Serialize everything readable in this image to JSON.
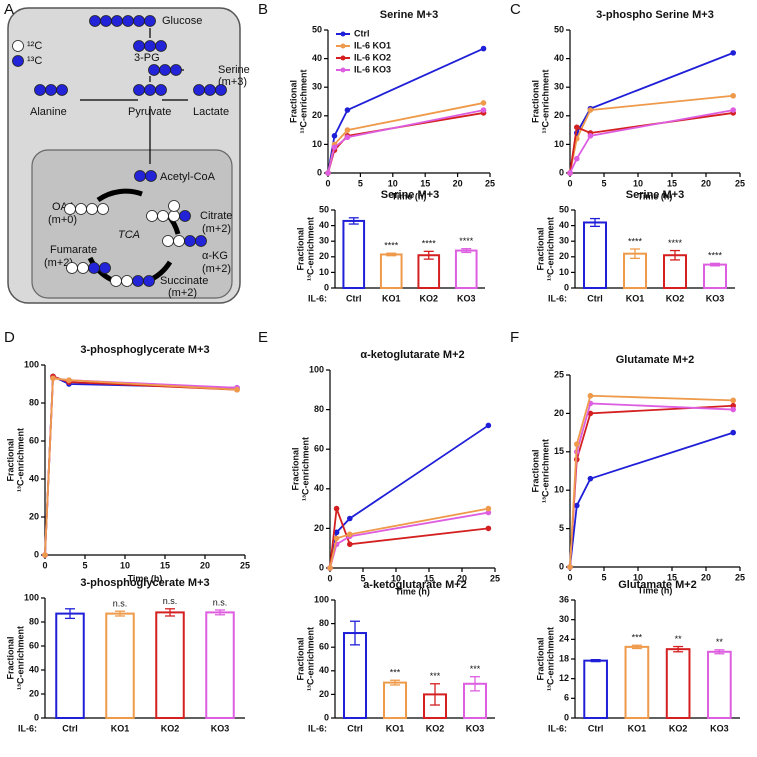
{
  "panels": [
    "A",
    "B",
    "C",
    "D",
    "E",
    "F"
  ],
  "diagram": {
    "glucose": "Glucose",
    "pg": "3-PG",
    "serine": "Serine",
    "serine_m": "(m+3)",
    "alanine": "Alanine",
    "pyruvate": "Pyruvate",
    "lactate": "Lactate",
    "acetyl": "Acetyl-CoA",
    "oaa": "OAA",
    "oaa_m": "(m+0)",
    "citrate": "Citrate",
    "citrate_m": "(m+2)",
    "akg": "α-KG",
    "akg_m": "(m+2)",
    "succinate": "Succinate",
    "succinate_m": "(m+2)",
    "fumarate": "Fumarate",
    "fumarate_m": "(m+2)",
    "tca": "TCA",
    "legend_12c": "¹²C",
    "legend_13c": "¹³C"
  },
  "chart_data": [
    {
      "type": "line",
      "title": "Serine M+3",
      "xlabel": "Time (h)",
      "ylabel": [
        "Fractional",
        "¹³C-enrichment"
      ],
      "legend": "top-left",
      "x": [
        0,
        1,
        3,
        24
      ],
      "xlim": [
        0,
        25
      ],
      "xticks": [
        0,
        5,
        10,
        15,
        20,
        25
      ],
      "ylim": [
        0,
        50
      ],
      "yticks": [
        0,
        10,
        20,
        30,
        40,
        50
      ],
      "series": [
        {
          "name": "Ctrl",
          "color": "#1f1fd8",
          "values": [
            0,
            13,
            22,
            43.5
          ]
        },
        {
          "name": "IL-6 KO1",
          "color": "#ee9a4a",
          "values": [
            0,
            10,
            15,
            24.5
          ]
        },
        {
          "name": "IL-6 KO2",
          "color": "#d42020",
          "values": [
            0,
            8,
            13,
            21
          ]
        },
        {
          "name": "IL-6 KO3",
          "color": "#dd5ee0",
          "values": [
            0,
            9,
            12.5,
            22
          ]
        }
      ]
    },
    {
      "type": "bar",
      "title": "Serine M+3",
      "ylabel": [
        "Fractional",
        "¹³C-enrichment"
      ],
      "xprefix": "IL-6:",
      "categories": [
        "Ctrl",
        "KO1",
        "KO2",
        "KO3"
      ],
      "values": [
        43,
        21.5,
        21,
        24
      ],
      "errors": [
        2,
        0.8,
        2.5,
        1.2
      ],
      "colors": [
        "#1f1fd8",
        "#ee9a4a",
        "#d42020",
        "#dd5ee0"
      ],
      "annotations": [
        null,
        "****",
        "****",
        "****"
      ],
      "ylim": [
        0,
        50
      ],
      "yticks": [
        0,
        10,
        20,
        30,
        40,
        50
      ]
    },
    {
      "type": "line",
      "title": "3-phospho Serine M+3",
      "xlabel": "Time (h)",
      "ylabel": [
        "Fractional",
        "¹³C-enrichment"
      ],
      "x": [
        0,
        1,
        3,
        24
      ],
      "xlim": [
        0,
        25
      ],
      "xticks": [
        0,
        5,
        10,
        15,
        20,
        25
      ],
      "ylim": [
        0,
        50
      ],
      "yticks": [
        0,
        10,
        20,
        30,
        40,
        50
      ],
      "series": [
        {
          "color": "#1f1fd8",
          "values": [
            0,
            14,
            22.5,
            42
          ]
        },
        {
          "color": "#ee9a4a",
          "values": [
            0,
            12,
            22,
            27
          ]
        },
        {
          "color": "#d42020",
          "values": [
            0,
            16,
            14,
            21
          ]
        },
        {
          "color": "#dd5ee0",
          "values": [
            0,
            5,
            13,
            22
          ]
        }
      ]
    },
    {
      "type": "bar",
      "title": "Serine M+3",
      "ylabel": [
        "Fractional",
        "¹³C-enrichment"
      ],
      "xprefix": "IL-6:",
      "categories": [
        "Ctrl",
        "KO1",
        "KO2",
        "KO3"
      ],
      "values": [
        42,
        22,
        21,
        15
      ],
      "errors": [
        2.5,
        3,
        3,
        0.8
      ],
      "colors": [
        "#1f1fd8",
        "#ee9a4a",
        "#d42020",
        "#dd5ee0"
      ],
      "annotations": [
        null,
        "****",
        "****",
        "****"
      ],
      "ylim": [
        0,
        50
      ],
      "yticks": [
        0,
        10,
        20,
        30,
        40,
        50
      ]
    },
    {
      "type": "line",
      "title": "3-phosphoglycerate M+3",
      "xlabel": "Time (h)",
      "ylabel": [
        "Fractional",
        "¹³C-enrichment"
      ],
      "x": [
        0,
        1,
        3,
        24
      ],
      "xlim": [
        0,
        25
      ],
      "xticks": [
        0,
        5,
        10,
        15,
        20,
        25
      ],
      "ylim": [
        0,
        100
      ],
      "yticks": [
        0,
        20,
        40,
        60,
        80,
        100
      ],
      "series": [
        {
          "color": "#1f1fd8",
          "values": [
            0,
            94,
            90,
            88
          ]
        },
        {
          "color": "#d42020",
          "values": [
            0,
            94,
            91,
            87
          ]
        },
        {
          "color": "#dd5ee0",
          "values": [
            0,
            93,
            92,
            88
          ]
        },
        {
          "color": "#ee9a4a",
          "values": [
            0,
            93,
            92,
            87
          ]
        }
      ]
    },
    {
      "type": "bar",
      "title": "3-phosphoglycerate M+3",
      "ylabel": [
        "Fractional",
        "¹³C-enrichment"
      ],
      "xprefix": "IL-6:",
      "categories": [
        "Ctrl",
        "KO1",
        "KO2",
        "KO3"
      ],
      "values": [
        87,
        87,
        88,
        88
      ],
      "errors": [
        4,
        2,
        3,
        2
      ],
      "colors": [
        "#1f1fd8",
        "#ee9a4a",
        "#d42020",
        "#dd5ee0"
      ],
      "annotations": [
        null,
        "n.s.",
        "n.s.",
        "n.s."
      ],
      "ylim": [
        0,
        100
      ],
      "yticks": [
        0,
        20,
        40,
        60,
        80,
        100
      ]
    },
    {
      "type": "line",
      "title": "α-ketoglutarate M+2",
      "xlabel": "Time (h)",
      "ylabel": [
        "Fractional",
        "¹³C-enrichment"
      ],
      "x": [
        0,
        1,
        3,
        24
      ],
      "xlim": [
        0,
        25
      ],
      "xticks": [
        0,
        5,
        10,
        15,
        20,
        25
      ],
      "ylim": [
        0,
        100
      ],
      "yticks": [
        0,
        20,
        40,
        60,
        80,
        100
      ],
      "series": [
        {
          "color": "#1f1fd8",
          "values": [
            0,
            18,
            25,
            72
          ]
        },
        {
          "color": "#d42020",
          "values": [
            0,
            30,
            12,
            20
          ]
        },
        {
          "color": "#dd5ee0",
          "values": [
            0,
            12,
            16,
            28
          ]
        },
        {
          "color": "#ee9a4a",
          "values": [
            0,
            15,
            17,
            30
          ]
        }
      ]
    },
    {
      "type": "bar",
      "title": "a-ketoglutarate M+2",
      "ylabel": [
        "Fractional",
        "¹³C-enrichment"
      ],
      "xprefix": "IL-6:",
      "categories": [
        "Ctrl",
        "KO1",
        "KO2",
        "KO3"
      ],
      "values": [
        72,
        30,
        20,
        29
      ],
      "errors": [
        10,
        2,
        9,
        6
      ],
      "colors": [
        "#1f1fd8",
        "#ee9a4a",
        "#d42020",
        "#dd5ee0"
      ],
      "annotations": [
        null,
        "***",
        "***",
        "***"
      ],
      "ylim": [
        0,
        100
      ],
      "yticks": [
        0,
        20,
        40,
        60,
        80,
        100
      ]
    },
    {
      "type": "line",
      "title": "Glutamate M+2",
      "xlabel": "Time (h)",
      "ylabel": [
        "Fractional",
        "¹³C-enrichment"
      ],
      "x": [
        0,
        1,
        3,
        24
      ],
      "xlim": [
        0,
        25
      ],
      "xticks": [
        0,
        5,
        10,
        15,
        20,
        25
      ],
      "ylim": [
        0,
        25
      ],
      "yticks": [
        0,
        5,
        10,
        15,
        20,
        25
      ],
      "series": [
        {
          "color": "#1f1fd8",
          "values": [
            0,
            8,
            11.5,
            17.5
          ]
        },
        {
          "color": "#d42020",
          "values": [
            0,
            14,
            20,
            21
          ]
        },
        {
          "color": "#dd5ee0",
          "values": [
            0,
            15,
            21.3,
            20.5
          ]
        },
        {
          "color": "#ee9a4a",
          "values": [
            0,
            16,
            22.3,
            21.7
          ]
        }
      ]
    },
    {
      "type": "bar",
      "title": "Glutamate M+2",
      "ylabel": [
        "Fractional",
        "¹³C-enrichment"
      ],
      "xprefix": "IL-6:",
      "categories": [
        "Ctrl",
        "KO1",
        "KO2",
        "KO3"
      ],
      "values": [
        17.5,
        21.7,
        21,
        20.2
      ],
      "errors": [
        0.3,
        0.5,
        0.8,
        0.6
      ],
      "colors": [
        "#1f1fd8",
        "#ee9a4a",
        "#d42020",
        "#dd5ee0"
      ],
      "annotations": [
        null,
        "***",
        "**",
        "**"
      ],
      "ylim": [
        0,
        36
      ],
      "yticks": [
        0,
        6,
        12,
        18,
        24,
        30,
        36
      ]
    }
  ]
}
